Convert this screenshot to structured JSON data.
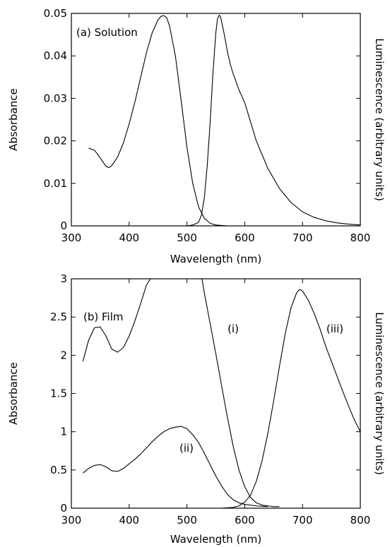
{
  "chart_data": [
    {
      "type": "line",
      "annotation": "(a)  Solution",
      "xlabel": "Wavelength (nm)",
      "ylabel": "Absorbance",
      "ylabel_right": "Luminescence  (arbitrary  units)",
      "xlim": [
        300,
        800
      ],
      "ylim": [
        0,
        0.05
      ],
      "xticks": [
        "300",
        "400",
        "500",
        "600",
        "700",
        "800"
      ],
      "yticks": [
        "0",
        "0.01",
        "0.02",
        "0.03",
        "0.04",
        "0.05"
      ],
      "series": [
        {
          "x": [
            330,
            340,
            350,
            360,
            365,
            370,
            380,
            390,
            400,
            410,
            420,
            430,
            440,
            450,
            455,
            460,
            465,
            470,
            480,
            490,
            500,
            510,
            520,
            530,
            540,
            550,
            560,
            570
          ],
          "y": [
            0.0183,
            0.0178,
            0.016,
            0.014,
            0.0137,
            0.0142,
            0.0162,
            0.0195,
            0.024,
            0.0292,
            0.035,
            0.0408,
            0.0455,
            0.0485,
            0.0493,
            0.0495,
            0.049,
            0.047,
            0.04,
            0.0295,
            0.0185,
            0.01,
            0.0045,
            0.0018,
            0.0006,
            0.0002,
            0.0001,
            0.0
          ]
        },
        {
          "x": [
            500,
            510,
            520,
            525,
            530,
            535,
            540,
            545,
            550,
            553,
            556,
            558,
            560,
            565,
            570,
            575,
            580,
            590,
            600,
            610,
            620,
            640,
            660,
            680,
            700,
            720,
            740,
            760,
            780,
            800
          ],
          "y": [
            0.0,
            0.0002,
            0.0008,
            0.0025,
            0.0065,
            0.014,
            0.024,
            0.036,
            0.0455,
            0.0488,
            0.0496,
            0.0492,
            0.048,
            0.0448,
            0.041,
            0.038,
            0.0358,
            0.032,
            0.029,
            0.0245,
            0.02,
            0.0135,
            0.0088,
            0.0055,
            0.0033,
            0.002,
            0.0012,
            0.0007,
            0.0004,
            0.0002
          ]
        }
      ]
    },
    {
      "type": "line",
      "annotation": "(b)  Film",
      "xlabel": "Wavelength (nm)",
      "ylabel": "Absorbance",
      "ylabel_right": "Luminescence  (arbitrary  units)",
      "xlim": [
        300,
        800
      ],
      "ylim": [
        0,
        3
      ],
      "xticks": [
        "300",
        "400",
        "500",
        "600",
        "700",
        "800"
      ],
      "yticks": [
        "0",
        "0.5",
        "1",
        "1.5",
        "2",
        "2.5",
        "3"
      ],
      "series": [
        {
          "name": "(i)",
          "x": [
            320,
            330,
            340,
            350,
            360,
            370,
            380,
            390,
            400,
            410,
            420,
            430,
            437,
            440,
            500,
            526,
            530,
            540,
            550,
            560,
            570,
            580,
            590,
            600,
            610,
            620,
            630,
            640,
            650,
            660
          ],
          "y": [
            1.92,
            2.2,
            2.36,
            2.37,
            2.25,
            2.08,
            2.04,
            2.1,
            2.25,
            2.45,
            2.68,
            2.92,
            3.0,
            3.0,
            3.0,
            3.0,
            2.82,
            2.42,
            2.02,
            1.6,
            1.19,
            0.81,
            0.5,
            0.28,
            0.14,
            0.07,
            0.04,
            0.03,
            0.02,
            0.02
          ]
        },
        {
          "name": "(ii)",
          "x": [
            320,
            330,
            340,
            350,
            360,
            370,
            380,
            390,
            400,
            410,
            420,
            430,
            440,
            450,
            460,
            470,
            480,
            490,
            500,
            510,
            520,
            530,
            540,
            550,
            560,
            570,
            580,
            590,
            600,
            620,
            640
          ],
          "y": [
            0.46,
            0.52,
            0.56,
            0.57,
            0.54,
            0.49,
            0.48,
            0.52,
            0.58,
            0.64,
            0.71,
            0.79,
            0.87,
            0.94,
            1.0,
            1.04,
            1.06,
            1.07,
            1.04,
            0.96,
            0.86,
            0.72,
            0.57,
            0.42,
            0.29,
            0.18,
            0.11,
            0.07,
            0.05,
            0.03,
            0.02
          ]
        },
        {
          "name": "(iii)",
          "x": [
            540,
            560,
            580,
            590,
            600,
            610,
            620,
            630,
            640,
            650,
            660,
            670,
            680,
            690,
            695,
            700,
            710,
            720,
            730,
            740,
            750,
            760,
            770,
            780,
            790,
            800
          ],
          "y": [
            0.0,
            0.0,
            0.01,
            0.03,
            0.08,
            0.17,
            0.35,
            0.62,
            0.98,
            1.4,
            1.85,
            2.28,
            2.62,
            2.82,
            2.86,
            2.84,
            2.72,
            2.55,
            2.35,
            2.12,
            1.92,
            1.72,
            1.52,
            1.33,
            1.15,
            1.0
          ]
        }
      ]
    }
  ]
}
